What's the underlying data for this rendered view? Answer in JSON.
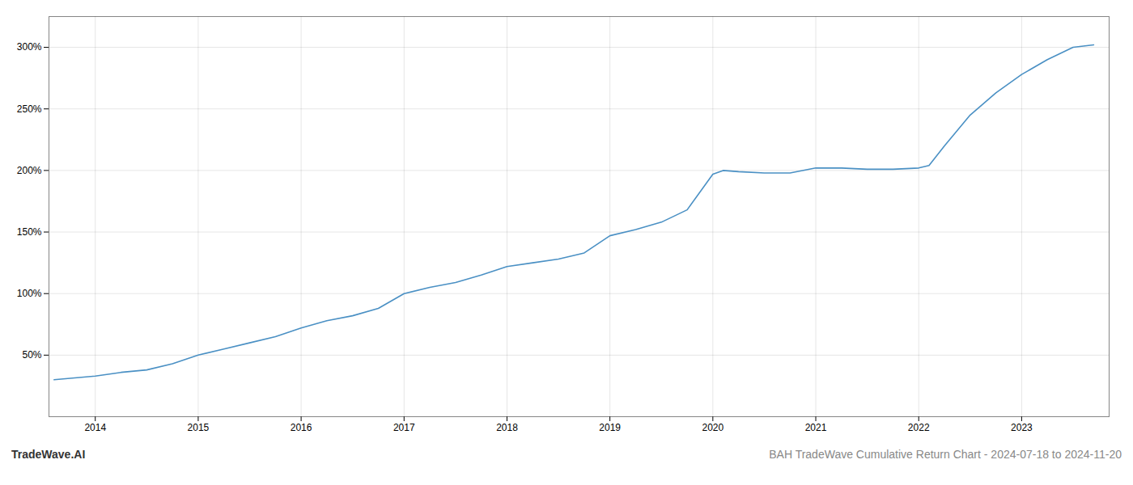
{
  "chart_data": {
    "type": "line",
    "title": "BAH TradeWave Cumulative Return Chart - 2024-07-18 to 2024-11-20",
    "annotations": [
      "TradeWave.AI"
    ],
    "x": [
      2013.6,
      2014.0,
      2014.25,
      2014.5,
      2014.75,
      2015.0,
      2015.25,
      2015.5,
      2015.75,
      2016.0,
      2016.25,
      2016.5,
      2016.75,
      2017.0,
      2017.25,
      2017.5,
      2017.75,
      2018.0,
      2018.25,
      2018.5,
      2018.75,
      2019.0,
      2019.25,
      2019.5,
      2019.75,
      2020.0,
      2020.1,
      2020.25,
      2020.5,
      2020.75,
      2021.0,
      2021.25,
      2021.5,
      2021.75,
      2022.0,
      2022.1,
      2022.25,
      2022.5,
      2022.75,
      2023.0,
      2023.25,
      2023.5,
      2023.7
    ],
    "values": [
      30,
      33,
      36,
      38,
      43,
      50,
      55,
      60,
      65,
      72,
      78,
      82,
      88,
      100,
      105,
      109,
      115,
      122,
      125,
      128,
      133,
      147,
      152,
      158,
      168,
      197,
      200,
      199,
      198,
      198,
      202,
      202,
      201,
      201,
      202,
      204,
      220,
      245,
      263,
      278,
      290,
      300,
      302
    ],
    "color": "#4a90c4",
    "xlim": [
      2013.55,
      2023.85
    ],
    "ylim": [
      0,
      325
    ],
    "xticks": [
      2014,
      2015,
      2016,
      2017,
      2018,
      2019,
      2020,
      2021,
      2022,
      2023
    ],
    "yticks": [
      {
        "value": 50,
        "label": "50%"
      },
      {
        "value": 100,
        "label": "100%"
      },
      {
        "value": 150,
        "label": "150%"
      },
      {
        "value": 200,
        "label": "200%"
      },
      {
        "value": 250,
        "label": "250%"
      },
      {
        "value": 300,
        "label": "300%"
      }
    ],
    "grid": true
  }
}
